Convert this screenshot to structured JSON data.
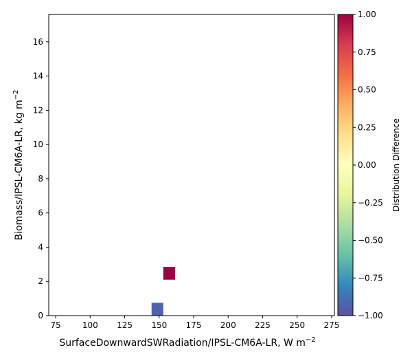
{
  "chart_data": {
    "type": "heatmap",
    "xlabel_main": "SurfaceDownwardSWRadiation/IPSL-CM6A-LR,  W m",
    "xlabel_sup": "−2",
    "ylabel_main": "Biomass/IPSL-CM6A-LR,  kg m",
    "ylabel_sup": "−2",
    "xlim": [
      70,
      277
    ],
    "ylim": [
      0,
      17.6
    ],
    "xticks": [
      75,
      100,
      125,
      150,
      175,
      200,
      225,
      250,
      275
    ],
    "yticks": [
      0,
      2,
      4,
      6,
      8,
      10,
      12,
      14,
      16
    ],
    "cells": [
      {
        "x0": 144.5,
        "x1": 153.0,
        "y0": 0.0,
        "y1": 0.75,
        "value": -0.93
      },
      {
        "x0": 153.0,
        "x1": 161.5,
        "y0": 2.1,
        "y1": 2.85,
        "value": 1.0
      }
    ],
    "colorbar": {
      "label": "Distribution Difference",
      "range": [
        -1.0,
        1.0
      ],
      "ticks": [
        1.0,
        0.75,
        0.5,
        0.25,
        0.0,
        -0.25,
        -0.5,
        -0.75,
        -1.0
      ],
      "tick_labels": [
        "1.00",
        "0.75",
        "0.50",
        "0.25",
        "0.00",
        "−0.25",
        "−0.50",
        "−0.75",
        "−1.00"
      ],
      "colormap": "Spectral_r",
      "colors": [
        "#5e4fa2",
        "#3288bd",
        "#66c2a5",
        "#abdda4",
        "#e6f598",
        "#ffffbf",
        "#fee08b",
        "#fdae61",
        "#f46d43",
        "#d53e4f",
        "#9e0142"
      ]
    },
    "grid": false
  }
}
